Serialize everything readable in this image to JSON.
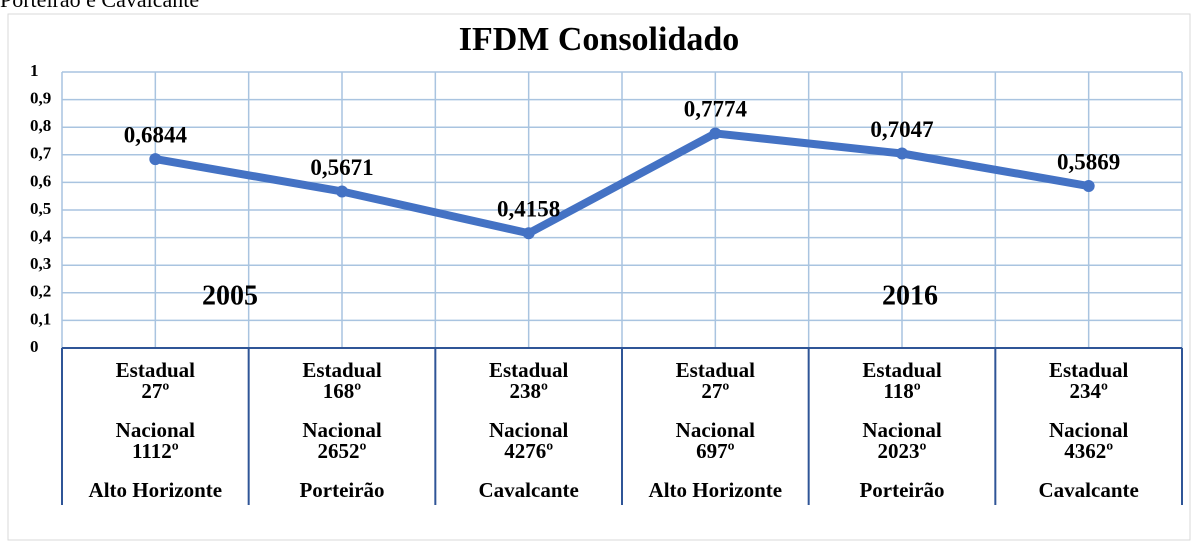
{
  "caption": "Porteirão e Cavalcante",
  "chart_data": {
    "type": "line",
    "title": "IFDM Consolidado",
    "categories": [
      "Alto Horizonte",
      "Porteirão",
      "Cavalcante",
      "Alto Horizonte",
      "Porteirão",
      "Cavalcante"
    ],
    "series": [
      {
        "name": "IFDM",
        "color": "#4472c4",
        "values": [
          0.6844,
          0.5671,
          0.4158,
          0.7774,
          0.7047,
          0.5869
        ],
        "value_labels": [
          "0,6844",
          "0,5671",
          "0,4158",
          "0,7774",
          "0,7047",
          "0,5869"
        ]
      }
    ],
    "rank_rows": [
      {
        "label": "Estadual",
        "values": [
          "27º",
          "168º",
          "238º",
          "27º",
          "118º",
          "234º"
        ]
      },
      {
        "label": "Nacional",
        "values": [
          "1112º",
          "2652º",
          "4276º",
          "697º",
          "2023º",
          "4362º"
        ]
      }
    ],
    "annotations": [
      "2005",
      "2016"
    ],
    "ylim": [
      0,
      1
    ],
    "yticks": [
      0,
      {
        "value": 0.1,
        "label": "0,1"
      },
      {
        "value": 0.2,
        "label": "0,2"
      },
      {
        "value": 0.3,
        "label": "0,3"
      },
      {
        "value": 0.4,
        "label": "0,4"
      },
      {
        "value": 0.5,
        "label": "0,5"
      },
      {
        "value": 0.6,
        "label": "0,6"
      },
      {
        "value": 0.7,
        "label": "0,7"
      },
      {
        "value": 0.8,
        "label": "0,8"
      },
      {
        "value": 0.9,
        "label": "0,9"
      },
      1
    ],
    "grid": true
  }
}
